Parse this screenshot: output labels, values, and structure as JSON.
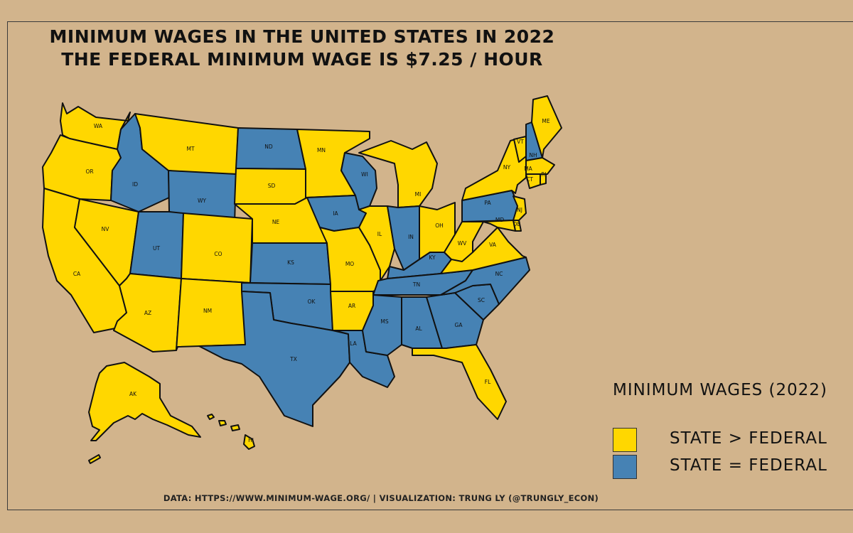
{
  "title": {
    "line1": "MINIMUM WAGES IN THE UNITED STATES IN 2022",
    "line2": "THE FEDERAL MINIMUM WAGE IS $7.25 / HOUR"
  },
  "legend": {
    "title": "MINIMUM WAGES (2022)",
    "items": [
      {
        "key": "above",
        "label": "STATE > FEDERAL",
        "color": "#ffd700"
      },
      {
        "key": "equal",
        "label": "STATE = FEDERAL",
        "color": "#4682b4"
      }
    ]
  },
  "caption": "DATA: HTTPS://WWW.MINIMUM-WAGE.ORG/ | VISUALIZATION: TRUNG LY (@TRUNGLY_ECON)",
  "colors": {
    "background": "#d2b48c",
    "above": "#ffd700",
    "equal": "#4682b4",
    "border": "#111111"
  },
  "states": [
    {
      "abbr": "WA",
      "category": "above"
    },
    {
      "abbr": "OR",
      "category": "above"
    },
    {
      "abbr": "CA",
      "category": "above"
    },
    {
      "abbr": "NV",
      "category": "above"
    },
    {
      "abbr": "ID",
      "category": "equal"
    },
    {
      "abbr": "MT",
      "category": "above"
    },
    {
      "abbr": "WY",
      "category": "equal"
    },
    {
      "abbr": "UT",
      "category": "equal"
    },
    {
      "abbr": "AZ",
      "category": "above"
    },
    {
      "abbr": "CO",
      "category": "above"
    },
    {
      "abbr": "NM",
      "category": "above"
    },
    {
      "abbr": "ND",
      "category": "equal"
    },
    {
      "abbr": "SD",
      "category": "above"
    },
    {
      "abbr": "NE",
      "category": "above"
    },
    {
      "abbr": "KS",
      "category": "equal"
    },
    {
      "abbr": "OK",
      "category": "equal"
    },
    {
      "abbr": "TX",
      "category": "equal"
    },
    {
      "abbr": "MN",
      "category": "above"
    },
    {
      "abbr": "IA",
      "category": "equal"
    },
    {
      "abbr": "MO",
      "category": "above"
    },
    {
      "abbr": "AR",
      "category": "above"
    },
    {
      "abbr": "LA",
      "category": "equal"
    },
    {
      "abbr": "WI",
      "category": "equal"
    },
    {
      "abbr": "IL",
      "category": "above"
    },
    {
      "abbr": "MI",
      "category": "above"
    },
    {
      "abbr": "IN",
      "category": "equal"
    },
    {
      "abbr": "OH",
      "category": "above"
    },
    {
      "abbr": "KY",
      "category": "equal"
    },
    {
      "abbr": "TN",
      "category": "equal"
    },
    {
      "abbr": "MS",
      "category": "equal"
    },
    {
      "abbr": "AL",
      "category": "equal"
    },
    {
      "abbr": "GA",
      "category": "equal"
    },
    {
      "abbr": "FL",
      "category": "above"
    },
    {
      "abbr": "SC",
      "category": "equal"
    },
    {
      "abbr": "NC",
      "category": "equal"
    },
    {
      "abbr": "VA",
      "category": "above"
    },
    {
      "abbr": "WV",
      "category": "above"
    },
    {
      "abbr": "PA",
      "category": "equal"
    },
    {
      "abbr": "NY",
      "category": "above"
    },
    {
      "abbr": "VT",
      "category": "above"
    },
    {
      "abbr": "NH",
      "category": "equal"
    },
    {
      "abbr": "ME",
      "category": "above"
    },
    {
      "abbr": "MA",
      "category": "above"
    },
    {
      "abbr": "CT",
      "category": "above"
    },
    {
      "abbr": "RI",
      "category": "above"
    },
    {
      "abbr": "NJ",
      "category": "above"
    },
    {
      "abbr": "DE",
      "category": "above"
    },
    {
      "abbr": "MD",
      "category": "above"
    },
    {
      "abbr": "AK",
      "category": "above"
    },
    {
      "abbr": "HI",
      "category": "above"
    }
  ]
}
